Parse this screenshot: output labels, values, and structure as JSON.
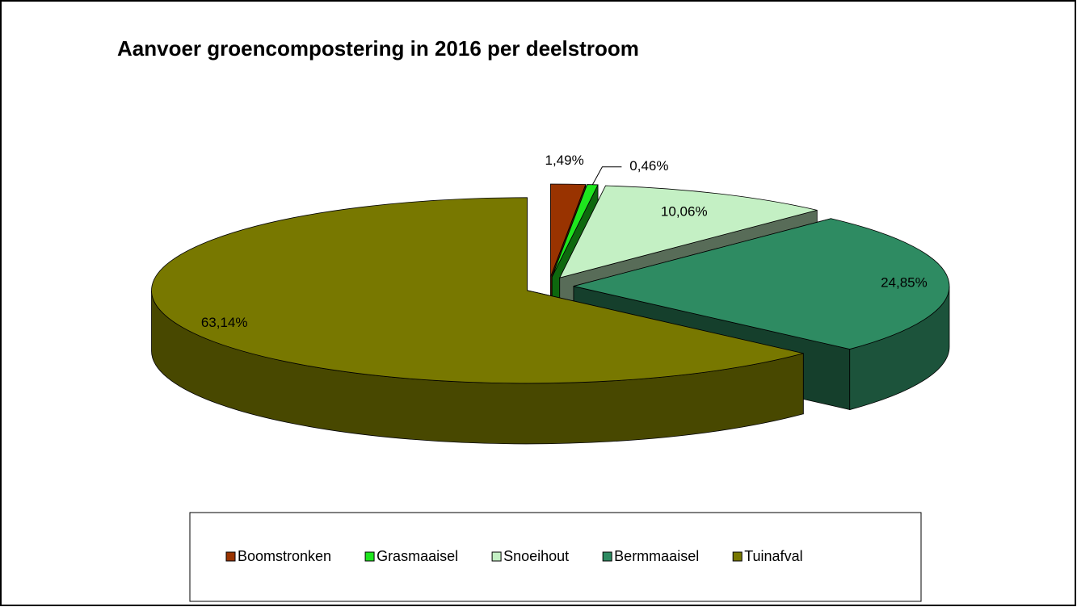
{
  "chart_data": {
    "type": "pie3d",
    "title": "Aanvoer groencompostering in 2016 per deelstroom",
    "categories": [
      "Boomstronken",
      "Grasmaaisel",
      "Snoeihout",
      "Bermmaaisel",
      "Tuinafval"
    ],
    "values": [
      1.49,
      0.46,
      10.06,
      24.85,
      63.14
    ],
    "value_labels": [
      "1,49%",
      "0,46%",
      "10,06%",
      "24,85%",
      "63,14%"
    ],
    "colors": [
      "#993300",
      "#1ee61e",
      "#c4f0c4",
      "#2e8b62",
      "#787800"
    ],
    "legend": "bottom"
  }
}
